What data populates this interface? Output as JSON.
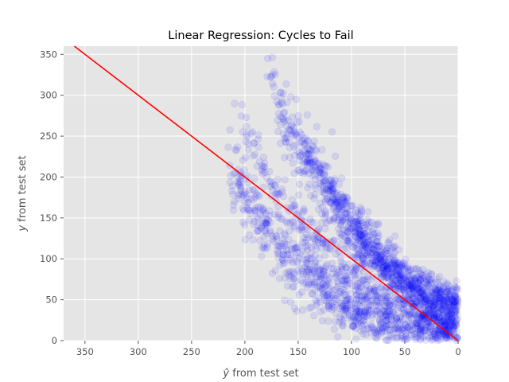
{
  "chart_data": {
    "type": "scatter",
    "title": "Linear Regression: Cycles to Fail",
    "xlabel_prefix": "ŷ",
    "xlabel_suffix": " from test set",
    "ylabel_prefix": "y",
    "ylabel_suffix": " from test set",
    "xlim": [
      370,
      0
    ],
    "ylim": [
      0,
      360
    ],
    "x_ticks": [
      350,
      300,
      250,
      200,
      150,
      100,
      50,
      0
    ],
    "y_ticks": [
      0,
      50,
      100,
      150,
      200,
      250,
      300,
      350
    ],
    "x_tick_labels": [
      "350",
      "300",
      "250",
      "200",
      "150",
      "100",
      "50",
      "0"
    ],
    "y_tick_labels": [
      "0",
      "50",
      "100",
      "150",
      "200",
      "250",
      "300",
      "350"
    ],
    "grid": true,
    "background": "#e5e5e5",
    "grid_color": "#ffffff",
    "point_color": "#0000ff",
    "point_alpha": 0.09,
    "line_color": "#ff0000",
    "regression_line": {
      "x": [
        0,
        360
      ],
      "y": [
        0,
        360
      ]
    },
    "scatter_bands": [
      {
        "x_start": 216,
        "x_end": 0,
        "y_start": 210,
        "y_end": 10,
        "curve": 2.4,
        "spread": 27,
        "count": 900
      },
      {
        "x_start": 210,
        "x_end": 0,
        "y_start": 280,
        "y_end": 25,
        "curve": 2.0,
        "spread": 14,
        "count": 260
      },
      {
        "x_start": 180,
        "x_end": 0,
        "y_start": 335,
        "y_end": 40,
        "curve": 1.8,
        "spread": 12,
        "count": 260
      },
      {
        "x_start": 170,
        "x_end": 0,
        "y_start": 275,
        "y_end": 55,
        "curve": 1.7,
        "spread": 20,
        "count": 360
      },
      {
        "x_start": 155,
        "x_end": 0,
        "y_start": 255,
        "y_end": 25,
        "curve": 1.6,
        "spread": 26,
        "count": 420
      },
      {
        "x_start": 110,
        "x_end": 0,
        "y_start": 125,
        "y_end": 50,
        "curve": 1.2,
        "spread": 12,
        "count": 140
      }
    ]
  }
}
